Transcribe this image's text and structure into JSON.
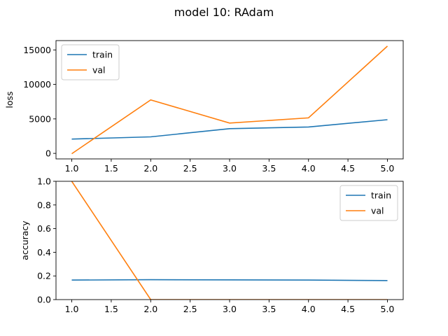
{
  "figure": {
    "title": "model 10: RAdam"
  },
  "chart_data": [
    {
      "type": "line",
      "ylabel": "loss",
      "x": [
        1.0,
        2.0,
        3.0,
        4.0,
        5.0
      ],
      "xlim": [
        0.8,
        5.2
      ],
      "ylim": [
        -800,
        16350
      ],
      "xticks": [
        "1.0",
        "1.5",
        "2.0",
        "2.5",
        "3.0",
        "3.5",
        "4.0",
        "4.5",
        "5.0"
      ],
      "yticks": [
        "0",
        "5000",
        "10000",
        "15000"
      ],
      "legend_position": "top-left",
      "series": [
        {
          "name": "train",
          "color": "#1f77b4",
          "values": [
            2070,
            2400,
            3580,
            3830,
            4880
          ]
        },
        {
          "name": "val",
          "color": "#ff7f0e",
          "values": [
            -50,
            7750,
            4400,
            5150,
            15550
          ]
        }
      ]
    },
    {
      "type": "line",
      "ylabel": "accuracy",
      "x": [
        1.0,
        2.0,
        3.0,
        4.0,
        5.0
      ],
      "xlim": [
        0.8,
        5.2
      ],
      "ylim": [
        0.0,
        1.0
      ],
      "xticks": [
        "1.0",
        "1.5",
        "2.0",
        "2.5",
        "3.0",
        "3.5",
        "4.0",
        "4.5",
        "5.0"
      ],
      "yticks": [
        "0.0",
        "0.2",
        "0.4",
        "0.6",
        "0.8",
        "1.0"
      ],
      "legend_position": "top-right",
      "series": [
        {
          "name": "train",
          "color": "#1f77b4",
          "values": [
            0.165,
            0.168,
            0.167,
            0.165,
            0.161
          ]
        },
        {
          "name": "val",
          "color": "#ff7f0e",
          "values": [
            1.0,
            0.0,
            0.0,
            0.0,
            0.0
          ]
        }
      ]
    }
  ]
}
